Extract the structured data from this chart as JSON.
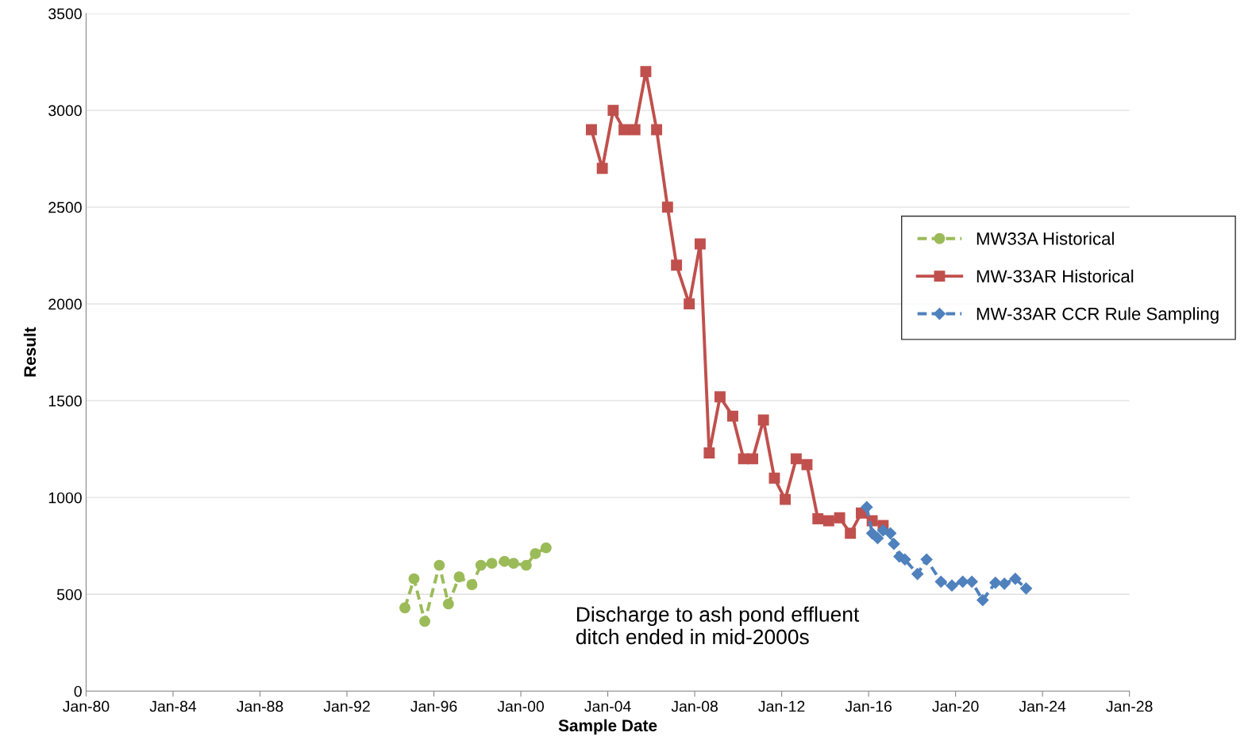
{
  "chart_data": {
    "type": "line",
    "xlabel": "Sample Date",
    "ylabel": "Result",
    "xlim": [
      "1980-01-01",
      "2028-01-01"
    ],
    "xticks": [
      {
        "value": "1980-01-01",
        "label": "Jan-80"
      },
      {
        "value": "1984-01-01",
        "label": "Jan-84"
      },
      {
        "value": "1988-01-01",
        "label": "Jan-88"
      },
      {
        "value": "1992-01-01",
        "label": "Jan-92"
      },
      {
        "value": "1996-01-01",
        "label": "Jan-96"
      },
      {
        "value": "2000-01-01",
        "label": "Jan-00"
      },
      {
        "value": "2004-01-01",
        "label": "Jan-04"
      },
      {
        "value": "2008-01-01",
        "label": "Jan-08"
      },
      {
        "value": "2012-01-01",
        "label": "Jan-12"
      },
      {
        "value": "2016-01-01",
        "label": "Jan-16"
      },
      {
        "value": "2020-01-01",
        "label": "Jan-20"
      },
      {
        "value": "2024-01-01",
        "label": "Jan-24"
      },
      {
        "value": "2028-01-01",
        "label": "Jan-28"
      }
    ],
    "ylim": [
      0,
      3500
    ],
    "yticks": [
      0,
      500,
      1000,
      1500,
      2000,
      2500,
      3000,
      3500
    ],
    "grid": "y",
    "legend": "right",
    "annotations": [
      "Discharge to ash pond effluent ditch ended in mid-2000s"
    ],
    "series": [
      {
        "name": "MW33A Historical",
        "color": "#9bbb59",
        "marker": "circle",
        "line_style": "dashed",
        "x": [
          "1994-09",
          "1995-02",
          "1995-08",
          "1996-04",
          "1996-09",
          "1997-03",
          "1997-10",
          "1998-03",
          "1998-09",
          "1999-04",
          "1999-09",
          "2000-04",
          "2000-09",
          "2001-03"
        ],
        "values": [
          430,
          580,
          360,
          650,
          450,
          590,
          550,
          650,
          660,
          670,
          660,
          650,
          710,
          740
        ]
      },
      {
        "name": "MW-33AR Historical",
        "color": "#c0504d",
        "marker": "square",
        "line_style": "solid",
        "x": [
          "2003-04",
          "2003-10",
          "2004-04",
          "2004-10",
          "2005-04",
          "2005-10",
          "2006-04",
          "2006-10",
          "2007-03",
          "2007-10",
          "2008-04",
          "2008-09",
          "2009-03",
          "2009-10",
          "2010-04",
          "2010-09",
          "2011-03",
          "2011-09",
          "2012-03",
          "2012-09",
          "2013-03",
          "2013-09",
          "2014-03",
          "2014-09",
          "2015-03",
          "2015-09",
          "2016-03",
          "2016-09"
        ],
        "values": [
          2900,
          2700,
          3000,
          2900,
          2900,
          3200,
          2900,
          2500,
          2200,
          2000,
          2310,
          1230,
          1520,
          1420,
          1200,
          1200,
          1400,
          1100,
          990,
          1200,
          1170,
          890,
          880,
          895,
          815,
          920,
          880,
          855
        ]
      },
      {
        "name": "MW-33AR CCR Rule Sampling",
        "color": "#4f81bd",
        "marker": "diamond",
        "line_style": "dashed",
        "x": [
          "2015-12",
          "2016-03",
          "2016-06",
          "2016-09",
          "2017-01",
          "2017-03",
          "2017-06",
          "2017-09",
          "2018-04",
          "2018-09",
          "2019-05",
          "2019-11",
          "2020-05",
          "2020-10",
          "2021-04",
          "2021-11",
          "2022-04",
          "2022-10",
          "2023-04"
        ],
        "values": [
          950,
          815,
          790,
          830,
          815,
          760,
          695,
          680,
          605,
          680,
          565,
          545,
          565,
          565,
          470,
          560,
          555,
          580,
          530
        ]
      }
    ]
  }
}
